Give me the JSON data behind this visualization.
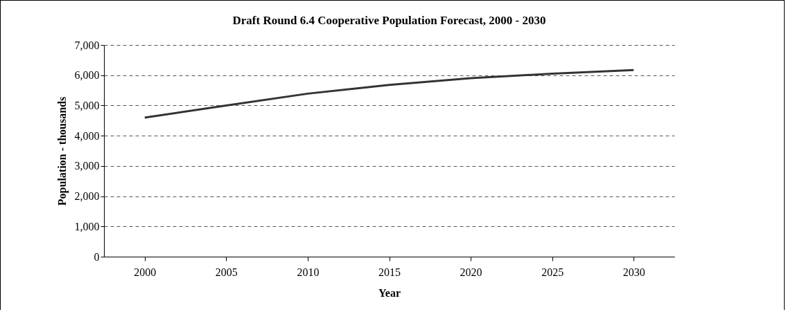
{
  "chart_data": {
    "type": "line",
    "title": "Draft Round 6.4 Cooperative Population Forecast, 2000 - 2030",
    "xlabel": "Year",
    "ylabel": "Population - thousands",
    "categories": [
      "2000",
      "2005",
      "2010",
      "2015",
      "2020",
      "2025",
      "2030"
    ],
    "series": [
      {
        "color": "#333333",
        "values": [
          4600,
          5000,
          5390,
          5680,
          5900,
          6050,
          6170
        ]
      }
    ],
    "ylim": [
      0,
      7000
    ],
    "yticks": [
      {
        "value": 0,
        "label": "0"
      },
      {
        "value": 1000,
        "label": "1,000"
      },
      {
        "value": 2000,
        "label": "2,000"
      },
      {
        "value": 3000,
        "label": "3,000"
      },
      {
        "value": 4000,
        "label": "4,000"
      },
      {
        "value": 5000,
        "label": "5,000"
      },
      {
        "value": 6000,
        "label": "6,000"
      },
      {
        "value": 7000,
        "label": "7,000"
      }
    ],
    "grid": "y",
    "marker": "none",
    "line_style": "solid"
  }
}
